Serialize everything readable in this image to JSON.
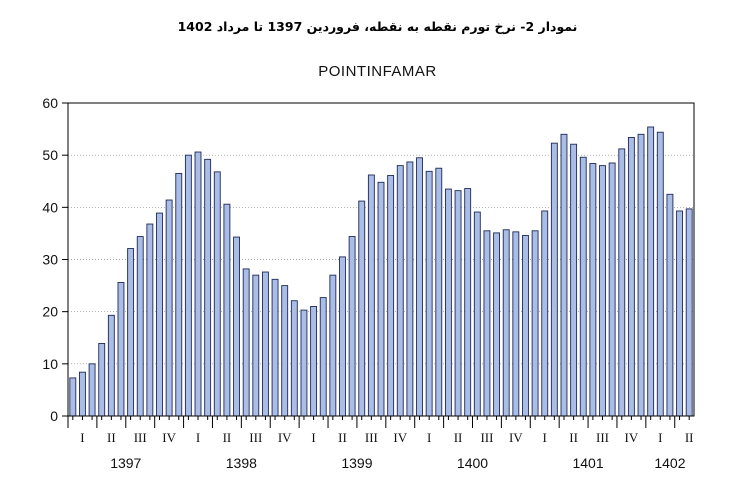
{
  "page_title": "نمودار 2- نرخ تورم نقطه به نقطه، فروردین 1397 تا مرداد 1402",
  "colors": {
    "bar_fill": "#a9bde6",
    "bar_stroke": "#1f2a55",
    "axis": "#000000",
    "grid": "#888888"
  },
  "chart_data": {
    "type": "bar",
    "title": "POINTINFAMAR",
    "xlabel": "",
    "ylabel": "",
    "ylim": [
      0,
      60
    ],
    "yticks": [
      "0",
      "10",
      "20",
      "30",
      "40",
      "50",
      "60"
    ],
    "grid": true,
    "years": [
      "1397",
      "1398",
      "1399",
      "1400",
      "1401",
      "1402"
    ],
    "quarter_labels": [
      "I",
      "II",
      "III",
      "IV",
      "I",
      "II",
      "III",
      "IV",
      "I",
      "II",
      "III",
      "IV",
      "I",
      "II",
      "III",
      "IV",
      "I",
      "II",
      "III",
      "IV",
      "I",
      "II"
    ],
    "values": [
      7.3,
      8.4,
      10.0,
      13.9,
      19.3,
      25.6,
      32.1,
      34.4,
      36.8,
      38.9,
      41.4,
      46.5,
      50.0,
      50.6,
      49.2,
      46.8,
      40.6,
      34.3,
      28.2,
      27.0,
      27.6,
      26.2,
      25.0,
      22.1,
      20.3,
      21.0,
      22.7,
      27.0,
      30.5,
      34.4,
      41.2,
      46.2,
      44.8,
      46.1,
      48.0,
      48.7,
      49.5,
      46.9,
      47.5,
      43.5,
      43.2,
      43.6,
      39.1,
      35.5,
      35.1,
      35.7,
      35.3,
      34.6,
      35.5,
      39.3,
      52.3,
      54.0,
      52.1,
      49.6,
      48.4,
      48.0,
      48.5,
      51.2,
      53.4,
      54.0,
      55.4,
      54.4,
      42.5,
      39.3,
      39.7
    ]
  }
}
